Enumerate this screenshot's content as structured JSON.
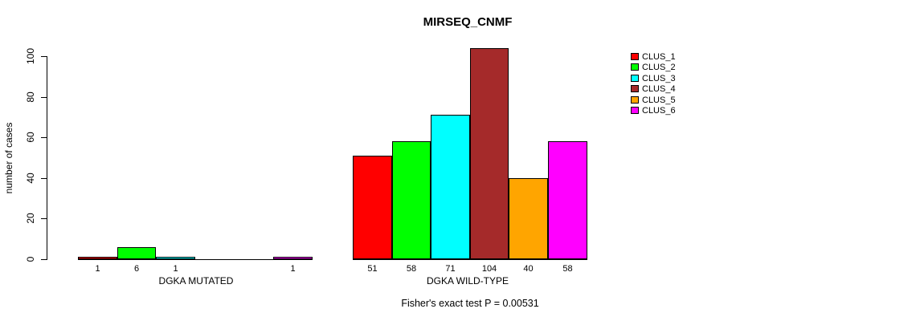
{
  "chart_data": {
    "type": "bar",
    "title": "MIRSEQ_CNMF",
    "ylabel": "number of cases",
    "ylim": [
      0,
      100
    ],
    "y_ticks": [
      0,
      20,
      40,
      60,
      80,
      100
    ],
    "grid": false,
    "legend_position": "right",
    "clusters": [
      {
        "label": "CLUS_1",
        "color": "#FF0000"
      },
      {
        "label": "CLUS_2",
        "color": "#00FF00"
      },
      {
        "label": "CLUS_3",
        "color": "#00FFFF"
      },
      {
        "label": "CLUS_4",
        "color": "#A52A2A"
      },
      {
        "label": "CLUS_5",
        "color": "#FFA500"
      },
      {
        "label": "CLUS_6",
        "color": "#FF00FF"
      }
    ],
    "groups": [
      {
        "label": "DGKA MUTATED",
        "values": [
          1,
          6,
          1,
          0,
          0,
          1
        ],
        "bar_labels": [
          "1",
          "6",
          "1",
          "",
          "",
          "1"
        ]
      },
      {
        "label": "DGKA WILD-TYPE",
        "values": [
          51,
          58,
          71,
          104,
          40,
          58
        ],
        "bar_labels": [
          "51",
          "58",
          "71",
          "104",
          "40",
          "58"
        ]
      }
    ],
    "footnote": "Fisher's exact test P = 0.00531"
  }
}
